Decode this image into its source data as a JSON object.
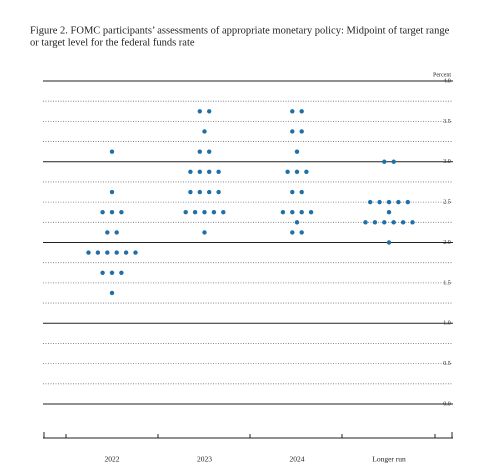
{
  "chart_data": {
    "type": "dot",
    "title_lines": [
      "Figure 2.  FOMC participants’ assessments of appropriate monetary policy:  Midpoint of target range",
      "or target level for the federal funds rate"
    ],
    "y_label": "Percent",
    "categories": [
      "2022",
      "2023",
      "2024",
      "Longer run"
    ],
    "dots": [
      [
        {
          "value": 3.125,
          "count": 1
        },
        {
          "value": 2.625,
          "count": 1
        },
        {
          "value": 2.375,
          "count": 3
        },
        {
          "value": 2.125,
          "count": 2
        },
        {
          "value": 1.875,
          "count": 6
        },
        {
          "value": 1.625,
          "count": 3
        },
        {
          "value": 1.375,
          "count": 1
        }
      ],
      [
        {
          "value": 3.625,
          "count": 2
        },
        {
          "value": 3.375,
          "count": 1
        },
        {
          "value": 3.125,
          "count": 2
        },
        {
          "value": 2.875,
          "count": 4
        },
        {
          "value": 2.625,
          "count": 4
        },
        {
          "value": 2.375,
          "count": 5
        },
        {
          "value": 2.125,
          "count": 1
        }
      ],
      [
        {
          "value": 3.625,
          "count": 2
        },
        {
          "value": 3.375,
          "count": 2
        },
        {
          "value": 3.125,
          "count": 1
        },
        {
          "value": 2.875,
          "count": 3
        },
        {
          "value": 2.625,
          "count": 2
        },
        {
          "value": 2.375,
          "count": 4
        },
        {
          "value": 2.25,
          "count": 1
        },
        {
          "value": 2.125,
          "count": 2
        }
      ],
      [
        {
          "value": 3.0,
          "count": 2
        },
        {
          "value": 2.5,
          "count": 5
        },
        {
          "value": 2.375,
          "count": 1
        },
        {
          "value": 2.25,
          "count": 6
        },
        {
          "value": 2.0,
          "count": 1
        }
      ]
    ],
    "color": "#1f6fa8",
    "ylim": [
      0,
      4
    ],
    "yticks": [
      {
        "value": 0,
        "label": "0.0"
      },
      {
        "value": 0.5,
        "label": "0.5"
      },
      {
        "value": 1,
        "label": "1.0"
      },
      {
        "value": 1.5,
        "label": "1.5"
      },
      {
        "value": 2,
        "label": "2.0"
      },
      {
        "value": 2.5,
        "label": "2.5"
      },
      {
        "value": 3,
        "label": "3.0"
      },
      {
        "value": 3.5,
        "label": "3.5"
      },
      {
        "value": 4,
        "label": "4.0"
      }
    ],
    "grid_lines": [
      0,
      0.25,
      0.5,
      0.75,
      1,
      1.25,
      1.5,
      1.75,
      2,
      2.25,
      2.5,
      2.75,
      3,
      3.25,
      3.5,
      3.75,
      4
    ]
  }
}
